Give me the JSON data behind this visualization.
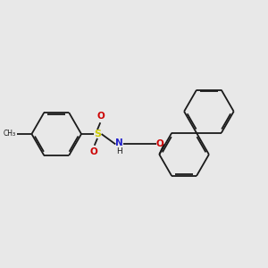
{
  "bg_color": "#e8e8e8",
  "bond_color": "#1a1a1a",
  "atom_colors": {
    "S": "#cccc00",
    "N": "#2222cc",
    "O": "#cc0000",
    "H": "#1a1a1a",
    "C": "#1a1a1a"
  },
  "figsize": [
    3.0,
    3.0
  ],
  "dpi": 100
}
